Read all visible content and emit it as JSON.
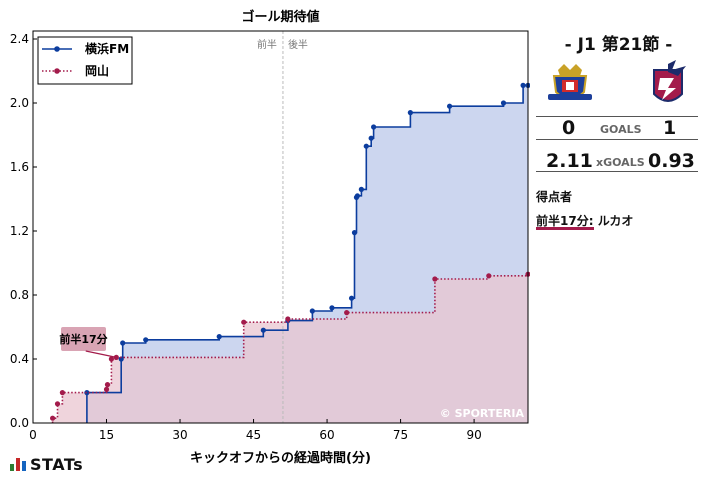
{
  "chart_data": {
    "type": "line",
    "step": true,
    "title": "ゴール期待値",
    "xlabel": "キックオフからの経過時間(分)",
    "ylabel": "",
    "xlim": [
      0,
      101
    ],
    "ylim": [
      0,
      2.45
    ],
    "x_ticks": [
      0,
      15,
      30,
      45,
      60,
      75,
      90
    ],
    "y_ticks": [
      "0.0",
      "0.4",
      "0.8",
      "1.2",
      "1.6",
      "2.0",
      "2.4"
    ],
    "halftime_minute": 51,
    "halftime_labels": [
      "前半",
      "後半"
    ],
    "watermark": "© SPORTERIA",
    "legend_position": "top-left",
    "series": [
      {
        "name": "横浜FM",
        "color": "#0c3d9e",
        "fill": "#c9d4ee",
        "line_style": "solid",
        "x": [
          11,
          18,
          18.3,
          23,
          38,
          47,
          52,
          57,
          61,
          65,
          65.6,
          66,
          66.2,
          67,
          68,
          69,
          69.5,
          77,
          85,
          96,
          100,
          101
        ],
        "y": [
          0.19,
          0.4,
          0.5,
          0.52,
          0.54,
          0.58,
          0.64,
          0.7,
          0.72,
          0.78,
          1.19,
          1.41,
          1.42,
          1.46,
          1.73,
          1.78,
          1.85,
          1.94,
          1.98,
          2.0,
          2.11,
          2.11
        ]
      },
      {
        "name": "岡山",
        "color": "#a31b4b",
        "fill": "#e9c6d0",
        "line_style": "dotted",
        "x": [
          4,
          5,
          6,
          15,
          15.2,
          16,
          17,
          43,
          52,
          64,
          82,
          93,
          101
        ],
        "y": [
          0.03,
          0.12,
          0.19,
          0.21,
          0.24,
          0.4,
          0.41,
          0.63,
          0.65,
          0.69,
          0.9,
          0.92,
          0.93
        ]
      }
    ],
    "annotations": [
      {
        "text": "前半17分",
        "x": 17,
        "y": 0.41,
        "series": "岡山"
      }
    ]
  },
  "match": {
    "title": "- J1 第21節 -",
    "home_team": "横浜FM",
    "away_team": "岡山",
    "home_goals": "0",
    "away_goals": "1",
    "goals_label": "GOALS",
    "home_xg": "2.11",
    "away_xg": "0.93",
    "xg_label": "xGOALS",
    "home_crest_icon": "yokohama-fm-crest-icon",
    "away_crest_icon": "okayama-crest-icon",
    "home_color": "#0c3d9e",
    "away_color": "#a31b4b"
  },
  "scorers": {
    "title": "得点者",
    "items": [
      {
        "time": "前半17分",
        "name": "ルカオ"
      }
    ]
  },
  "brand": {
    "logo_text": "STATs",
    "bar_colors": [
      "#2e7d32",
      "#c62828",
      "#1565c0"
    ]
  }
}
